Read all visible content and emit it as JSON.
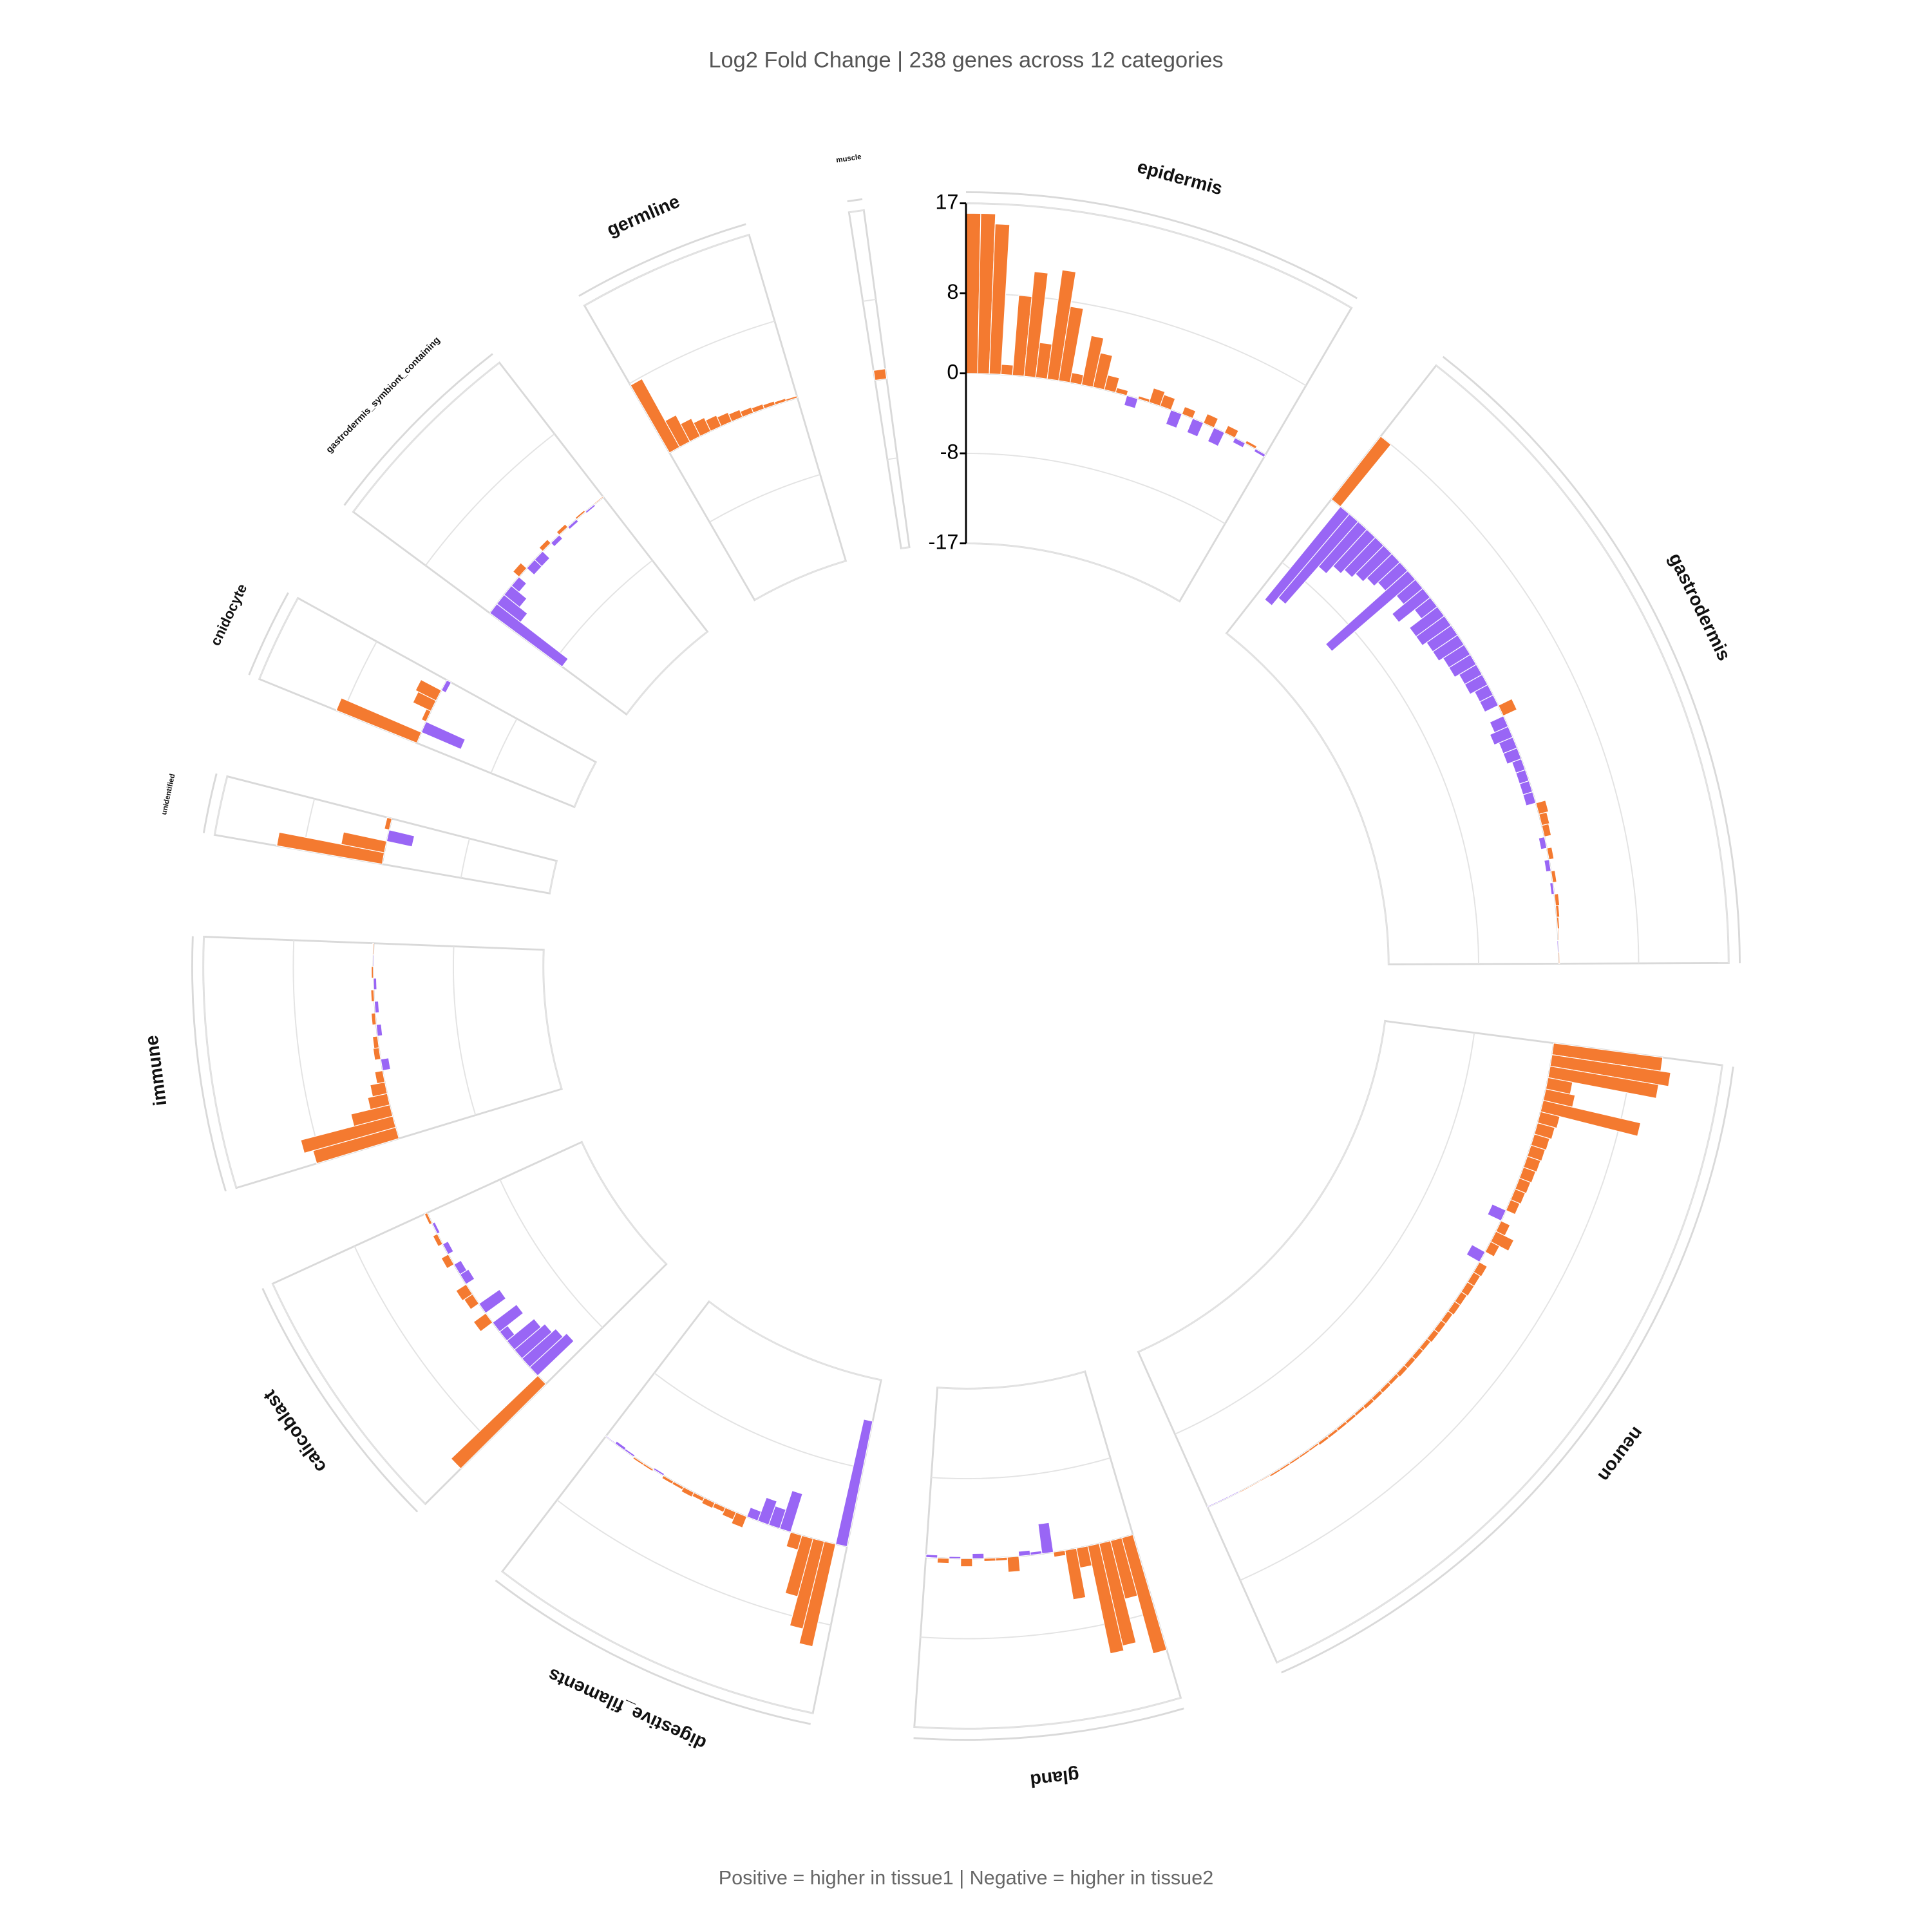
{
  "chart_data": {
    "type": "polar_bar",
    "title": "Log2 Fold Change | 238 genes across 12 categories",
    "caption": "Positive = higher in tissue1 | Negative = higher in tissue2",
    "ylim": [
      -17,
      17
    ],
    "yticks": [
      -17,
      -8,
      0,
      8,
      17
    ],
    "positive_color": "#f47a30",
    "negative_color": "#9966f5",
    "grid": true,
    "sectors": [
      {
        "name": "epidermis",
        "values": [
          16,
          16,
          15,
          1,
          8,
          10.5,
          3.5,
          11,
          7.5,
          1,
          5,
          3.5,
          1.5,
          0.5,
          -1,
          0.3,
          1.5,
          1.2,
          -1.5,
          0.8,
          -1.5,
          1,
          -1.5,
          0.8,
          -0.5,
          0.3,
          -0.3
        ]
      },
      {
        "name": "gastrodermis",
        "values": [
          8,
          -12,
          -11,
          -6,
          -5,
          -4.5,
          -4,
          -3.5,
          -3,
          -11,
          -2.5,
          -4,
          -2,
          -3.5,
          -3.5,
          -3,
          -3,
          -2.5,
          -2.5,
          -2,
          -2,
          -1.5,
          -1.5,
          1.5,
          -1.5,
          -2,
          -1.5,
          -1.5,
          -1,
          -1,
          -1,
          -1,
          1,
          0.8,
          0.7,
          -0.6,
          0.5,
          -0.5,
          0.4,
          -0.3,
          0.4,
          0.3,
          0.2,
          0.1,
          -0.1,
          0.1
        ]
      },
      {
        "name": "neuron",
        "values": [
          11,
          12,
          11,
          2.5,
          3,
          10,
          2,
          1.8,
          1.6,
          1.5,
          1.4,
          1.3,
          1.2,
          1.1,
          1,
          -1.5,
          1,
          2,
          1,
          -1.5,
          0.9,
          0.8,
          0.8,
          0.7,
          0.7,
          0.6,
          0.6,
          0.6,
          0.5,
          0.5,
          0.5,
          0.5,
          0.4,
          0.4,
          0.4,
          0.4,
          0.3,
          0.3,
          0.3,
          0.3,
          0.3,
          0.2,
          0.2,
          0.2,
          0.2,
          0.2,
          0.1,
          0.1,
          0.1,
          -0.1,
          -0.1,
          -0.1
        ]
      },
      {
        "name": "gland",
        "values": [
          12,
          6,
          10.5,
          11,
          2,
          5,
          0.5,
          -3,
          -0.3,
          -0.5,
          1.5,
          0.3,
          0.3,
          -0.5,
          0.8,
          -0.2,
          0.5,
          -0.3
        ]
      },
      {
        "name": "digestive_filaments",
        "values": [
          -12.8,
          10.5,
          9,
          6,
          1.5,
          -4,
          -2,
          -2.5,
          -1,
          1.2,
          0.8,
          0.5,
          0.6,
          0.4,
          0.5,
          0.3,
          0.3,
          -0.2,
          0.2,
          0.2,
          -0.2,
          -0.3,
          -0.1
        ]
      },
      {
        "name": "calicoblast",
        "values": [
          12,
          -5,
          -4.5,
          -4,
          -3.5,
          -1,
          -3,
          1.5,
          -2.5,
          1,
          1.2,
          -1,
          -0.8,
          0.8,
          -0.6,
          0.5,
          -0.3,
          0.3
        ]
      },
      {
        "name": "immune",
        "values": [
          8.6,
          9.5,
          4,
          2,
          1.5,
          0.8,
          -0.8,
          0.6,
          0.5,
          -0.5,
          0.4,
          -0.4,
          0.3,
          -0.3,
          0.2,
          -0.1,
          0.1
        ]
      },
      {
        "name": "unidentified",
        "values": [
          10.7,
          4.4,
          -2.6,
          0.5
        ]
      },
      {
        "name": "cnidocyte",
        "values": [
          8.7,
          -4.3,
          0.5,
          2,
          2.3,
          -0.5
        ]
      },
      {
        "name": "gastrodermis_symbiont_containing",
        "values": [
          -9,
          -3,
          -2,
          -1,
          0.8,
          -1,
          -1,
          0.5,
          -0.5,
          0.4,
          -0.3,
          0.2,
          -0.2,
          0.1
        ]
      },
      {
        "name": "germline",
        "values": [
          7.8,
          3,
          2,
          1.5,
          1.2,
          1,
          0.8,
          0.6,
          0.5,
          0.4,
          0.3,
          0.2
        ]
      },
      {
        "name": "muscle",
        "values": [
          1
        ]
      }
    ]
  }
}
